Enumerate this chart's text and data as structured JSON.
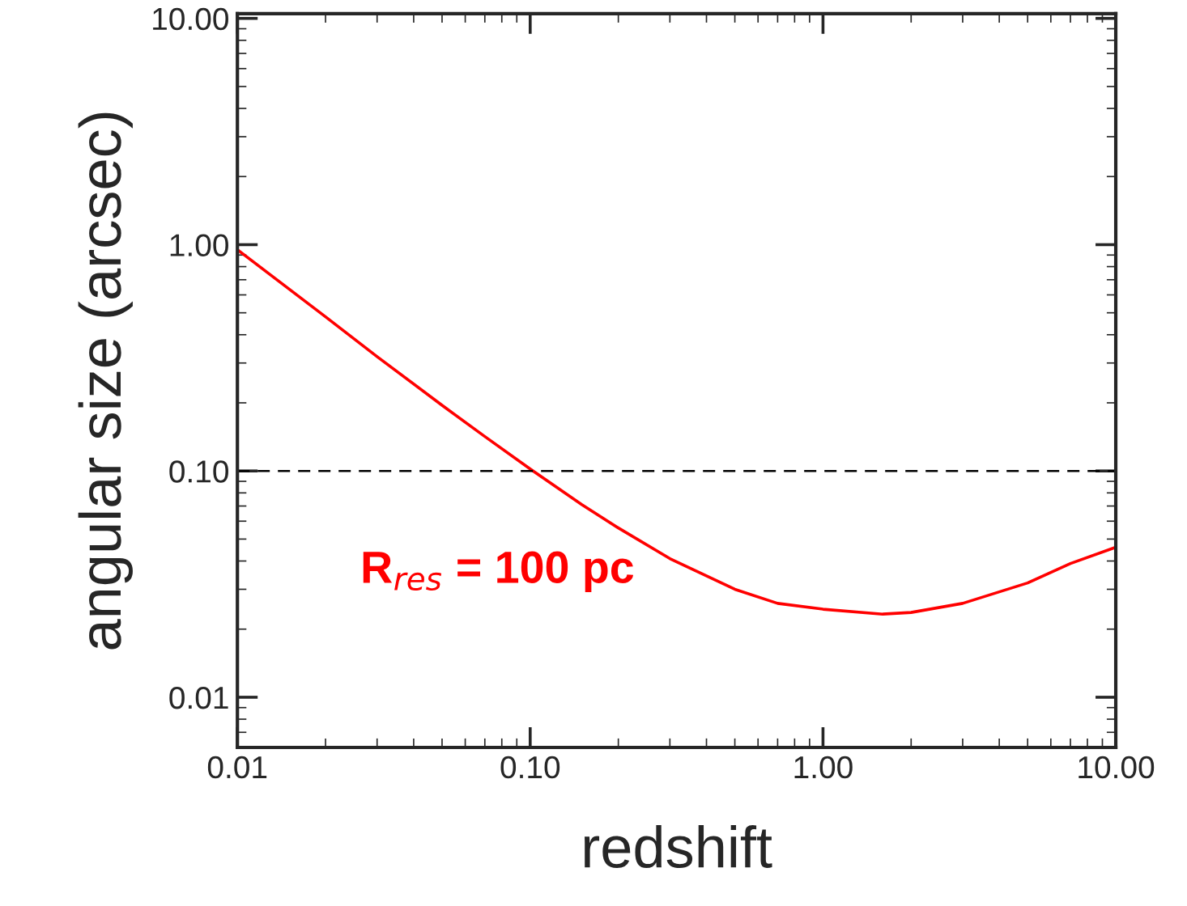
{
  "chart_data": {
    "type": "line",
    "xlabel": "redshift",
    "ylabel": "angular size (arcsec)",
    "log": "xy",
    "x": [
      0.01,
      0.02,
      0.03,
      0.05,
      0.07,
      0.1,
      0.15,
      0.2,
      0.3,
      0.5,
      0.7,
      1.0,
      1.6,
      2.0,
      3.0,
      5.0,
      7.0,
      10.0
    ],
    "series": [
      {
        "color": "#ff0000",
        "values": [
          0.95,
          0.48,
          0.32,
          0.195,
          0.142,
          0.102,
          0.071,
          0.056,
          0.041,
          0.03,
          0.026,
          0.0245,
          0.0233,
          0.0237,
          0.026,
          0.032,
          0.039,
          0.046
        ]
      }
    ],
    "xlim": [
      0.01,
      10
    ],
    "ylim": [
      0.006,
      10.5
    ],
    "xticks": [
      {
        "value": 0.01,
        "label": "0.01"
      },
      {
        "value": 0.1,
        "label": "0.10"
      },
      {
        "value": 1,
        "label": "1.00"
      },
      {
        "value": 10,
        "label": "10.00"
      }
    ],
    "yticks": [
      {
        "value": 0.01,
        "label": "0.01"
      },
      {
        "value": 0.1,
        "label": "0.10"
      },
      {
        "value": 1,
        "label": "1.00"
      },
      {
        "value": 10,
        "label": "10.00"
      }
    ],
    "ref_lines": [
      {
        "axis": "y",
        "value": 0.1,
        "color": "#000000",
        "line_style": "dashed"
      }
    ],
    "annotations": [
      "R$_{res}$ = 100 pc"
    ],
    "grid": false,
    "legend": false,
    "marker": "none",
    "line_style": "solid"
  }
}
